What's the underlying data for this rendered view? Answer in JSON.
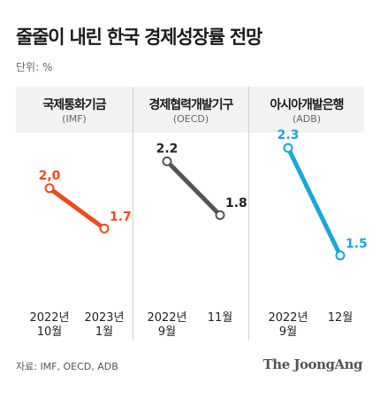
{
  "title": "줄줄이 내린 한국 경제성장률 전망",
  "unit_label": "단위: %",
  "source": "자료: IMF, OECD, ADB",
  "brand": "The JoongAng",
  "chart_data": [
    {
      "type": "line",
      "title": "국제통화기금",
      "subtitle": "(IMF)",
      "color": "#ee4a1c",
      "x": [
        "2022년 10월",
        "2023년 1월"
      ],
      "x_lines": [
        [
          "2022년",
          "10월"
        ],
        [
          "2023년",
          "1월"
        ]
      ],
      "values": [
        2.0,
        1.7
      ],
      "labels": [
        "2,0",
        "1.7"
      ],
      "ylim": [
        1.4,
        2.4
      ]
    },
    {
      "type": "line",
      "title": "경제협력개발기구",
      "subtitle": "(OECD)",
      "color": "#555555",
      "x": [
        "2022년 9월",
        "11월"
      ],
      "x_lines": [
        [
          "2022년",
          "9월"
        ],
        [
          "11월"
        ]
      ],
      "values": [
        2.2,
        1.8
      ],
      "labels": [
        "2.2",
        "1.8"
      ],
      "ylim": [
        1.4,
        2.4
      ]
    },
    {
      "type": "line",
      "title": "아시아개발은행",
      "subtitle": "(ADB)",
      "color": "#1aa6dc",
      "x": [
        "2022년 9월",
        "12월"
      ],
      "x_lines": [
        [
          "2022년",
          "9월"
        ],
        [
          "12월"
        ]
      ],
      "values": [
        2.3,
        1.5
      ],
      "labels": [
        "2.3",
        "1.5"
      ],
      "ylim": [
        1.4,
        2.4
      ]
    }
  ]
}
